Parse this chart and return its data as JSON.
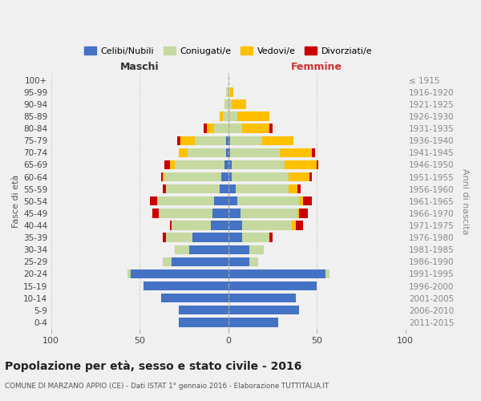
{
  "age_groups": [
    "0-4",
    "5-9",
    "10-14",
    "15-19",
    "20-24",
    "25-29",
    "30-34",
    "35-39",
    "40-44",
    "45-49",
    "50-54",
    "55-59",
    "60-64",
    "65-69",
    "70-74",
    "75-79",
    "80-84",
    "85-89",
    "90-94",
    "95-99",
    "100+"
  ],
  "birth_years": [
    "2011-2015",
    "2006-2010",
    "2001-2005",
    "1996-2000",
    "1991-1995",
    "1986-1990",
    "1981-1985",
    "1976-1980",
    "1971-1975",
    "1966-1970",
    "1961-1965",
    "1956-1960",
    "1951-1955",
    "1946-1950",
    "1941-1945",
    "1936-1940",
    "1931-1935",
    "1926-1930",
    "1921-1925",
    "1916-1920",
    "≤ 1915"
  ],
  "maschi_celibi": [
    28,
    28,
    38,
    48,
    55,
    32,
    22,
    20,
    10,
    9,
    8,
    5,
    4,
    2,
    1,
    1,
    0,
    0,
    0,
    0,
    0
  ],
  "maschi_coniugati": [
    0,
    0,
    0,
    0,
    2,
    5,
    8,
    15,
    22,
    30,
    32,
    30,
    32,
    28,
    22,
    18,
    8,
    3,
    2,
    1,
    0
  ],
  "maschi_vedovi": [
    0,
    0,
    0,
    0,
    0,
    0,
    0,
    0,
    0,
    0,
    0,
    0,
    1,
    3,
    5,
    8,
    4,
    2,
    0,
    0,
    0
  ],
  "maschi_divorziati": [
    0,
    0,
    0,
    0,
    0,
    0,
    0,
    2,
    1,
    4,
    4,
    2,
    1,
    3,
    0,
    2,
    2,
    0,
    0,
    0,
    0
  ],
  "femmine_nubili": [
    28,
    40,
    38,
    50,
    55,
    12,
    12,
    8,
    8,
    7,
    5,
    4,
    2,
    2,
    1,
    1,
    0,
    0,
    0,
    0,
    0
  ],
  "femmine_coniugate": [
    0,
    0,
    0,
    0,
    2,
    5,
    8,
    15,
    28,
    32,
    35,
    30,
    32,
    30,
    28,
    18,
    8,
    5,
    2,
    1,
    0
  ],
  "femmine_vedove": [
    0,
    0,
    0,
    0,
    0,
    0,
    0,
    0,
    2,
    1,
    2,
    5,
    12,
    18,
    18,
    18,
    15,
    18,
    8,
    2,
    0
  ],
  "femmine_divorziate": [
    0,
    0,
    0,
    0,
    0,
    0,
    0,
    2,
    4,
    5,
    5,
    2,
    1,
    1,
    2,
    0,
    2,
    0,
    0,
    0,
    0
  ],
  "color_celibi": "#4472c4",
  "color_coniugati": "#c5d9a0",
  "color_vedovi": "#ffc000",
  "color_divorziati": "#cc0000",
  "legend_labels": [
    "Celibi/Nubili",
    "Coniugati/e",
    "Vedovi/e",
    "Divorziati/e"
  ],
  "title": "Popolazione per età, sesso e stato civile - 2016",
  "subtitle": "COMUNE DI MARZANO APPIO (CE) - Dati ISTAT 1° gennaio 2016 - Elaborazione TUTTITALIA.IT",
  "label_maschi": "Maschi",
  "label_femmine": "Femmine",
  "ylabel_left": "Fasce di età",
  "ylabel_right": "Anni di nascita",
  "bg_color": "#f0f0f0"
}
